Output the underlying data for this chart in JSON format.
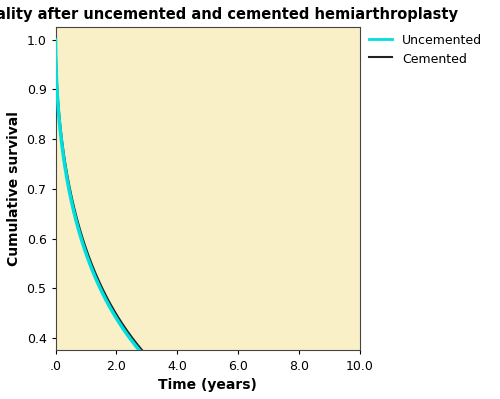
{
  "title": "Mortality after uncemented and cemented hemiarthroplasty",
  "xlabel": "Time (years)",
  "ylabel": "Cumulative survival",
  "xlim": [
    0,
    10.0
  ],
  "ylim": [
    0.375,
    1.025
  ],
  "xticks": [
    0,
    2.0,
    4.0,
    6.0,
    8.0,
    10.0
  ],
  "xticklabels": [
    ".0",
    "2.0",
    "4.0",
    "6.0",
    "8.0",
    "10.0"
  ],
  "yticks": [
    0.4,
    0.5,
    0.6,
    0.7,
    0.8,
    0.9,
    1.0
  ],
  "yticklabels": [
    "0.4",
    "0.5",
    "0.6",
    "0.7",
    "0.8",
    "0.9",
    "1.0"
  ],
  "background_color": "#FAF0C8",
  "outer_background": "#FFFFFF",
  "uncemented_color": "#00DEDE",
  "cemented_color": "#222222",
  "conf_band_color": "#FF3333",
  "legend_labels": [
    "Uncemented",
    "Cemented"
  ],
  "title_fontsize": 10.5,
  "axis_label_fontsize": 10,
  "tick_fontsize": 9,
  "figsize": [
    5.0,
    3.99
  ],
  "dpi": 100
}
